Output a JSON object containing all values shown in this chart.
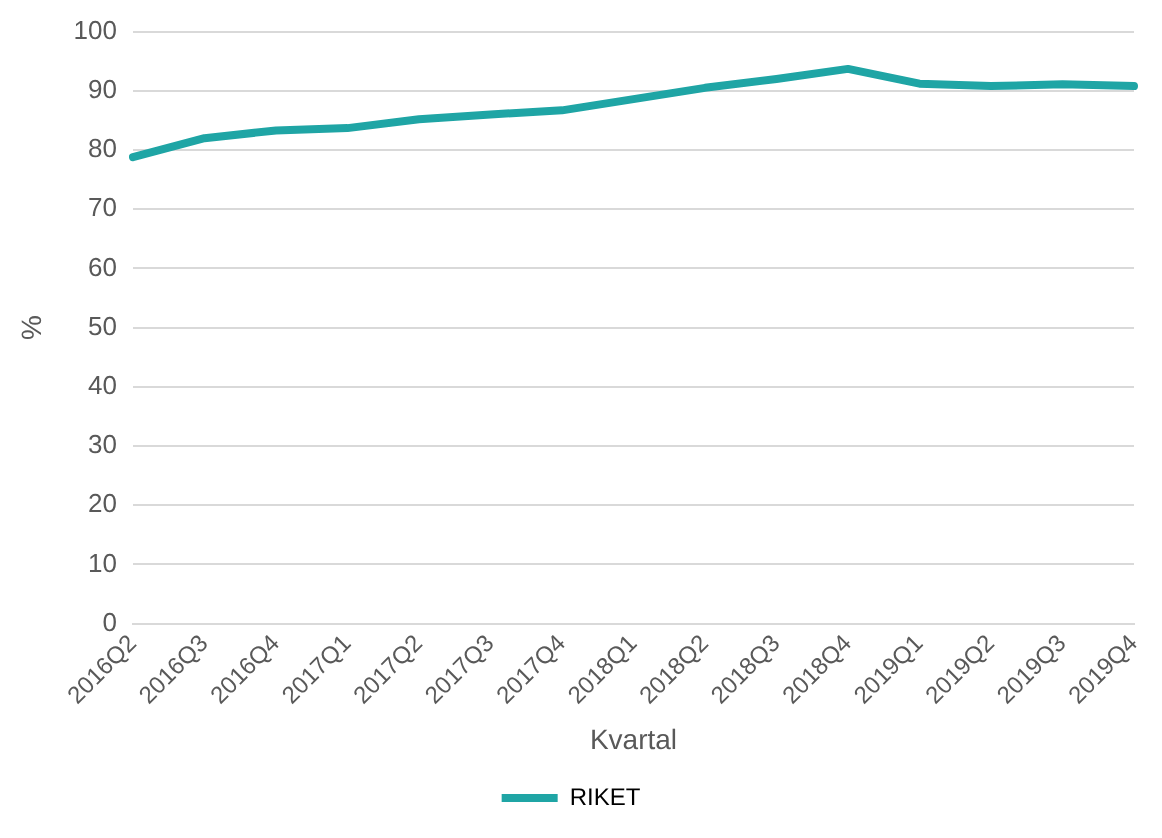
{
  "chart_data": {
    "type": "line",
    "xlabel": "Kvartal",
    "ylabel": "%",
    "categories": [
      "2016Q2",
      "2016Q3",
      "2016Q4",
      "2017Q1",
      "2017Q2",
      "2017Q3",
      "2017Q4",
      "2018Q1",
      "2018Q2",
      "2018Q3",
      "2018Q4",
      "2019Q1",
      "2019Q2",
      "2019Q3",
      "2019Q4"
    ],
    "series": [
      {
        "name": "RIKET",
        "color": "#1fa5a5",
        "values": [
          78.8,
          82,
          83.3,
          83.7,
          85.2,
          86,
          86.7,
          88.6,
          90.5,
          92,
          93.7,
          91.2,
          90.8,
          91.1,
          90.8
        ]
      }
    ],
    "ylim": [
      0,
      100
    ],
    "yticks": [
      0,
      10,
      20,
      30,
      40,
      50,
      60,
      70,
      80,
      90,
      100
    ],
    "grid": "y",
    "legend": "bottom",
    "marker": "none",
    "line_style": "solid"
  }
}
